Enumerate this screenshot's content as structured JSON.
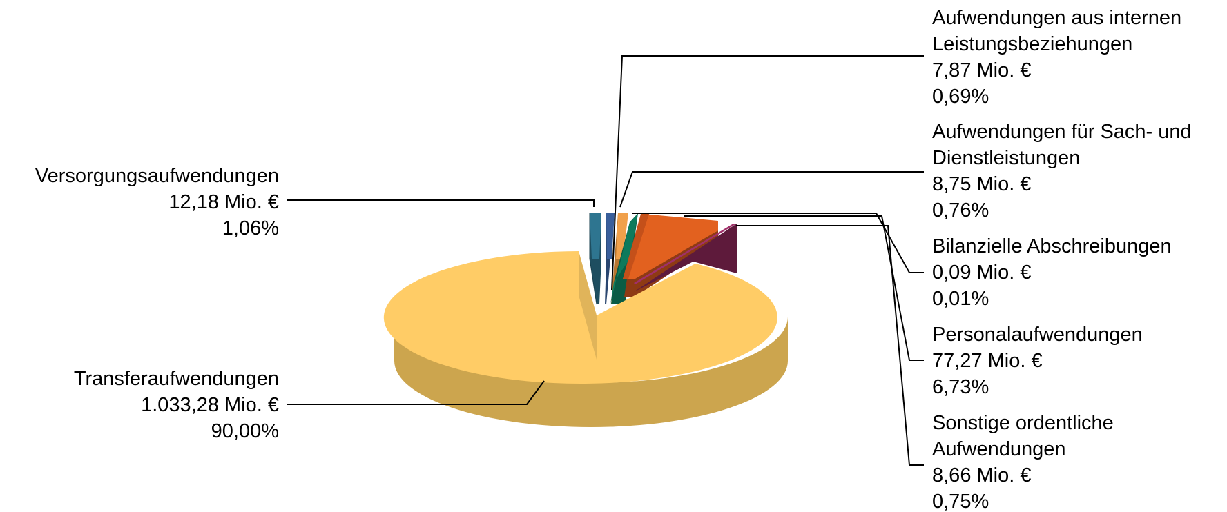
{
  "chart_data": {
    "type": "pie",
    "title": "",
    "unit": "Mio. €",
    "slices": [
      {
        "name": "Transferaufwendungen",
        "value_label": "1.033,28 Mio. €",
        "percent_label": "90,00%",
        "value": 1033.28,
        "percent": 90.0,
        "color": "#FFCC66"
      },
      {
        "name": "Versorgungsaufwendungen",
        "value_label": "12,18 Mio. €",
        "percent_label": "1,06%",
        "value": 12.18,
        "percent": 1.06,
        "color": "#2E7590"
      },
      {
        "name": "Aufwendungen aus internen Leistungsbeziehungen",
        "name_lines": [
          "Aufwendungen aus internen",
          "Leistungsbeziehungen"
        ],
        "value_label": "7,87 Mio. €",
        "percent_label": "0,69%",
        "value": 7.87,
        "percent": 0.69,
        "color": "#3A5F9B"
      },
      {
        "name": "Aufwendungen für Sach- und Dienstleistungen",
        "name_lines": [
          "Aufwendungen für Sach- und",
          "Dienstleistungen"
        ],
        "value_label": "8,75 Mio. €",
        "percent_label": "0,76%",
        "value": 8.75,
        "percent": 0.76,
        "color": "#F0A04B"
      },
      {
        "name": "Bilanzielle Abschreibungen",
        "value_label": "0,09 Mio. €",
        "percent_label": "0,01%",
        "value": 0.09,
        "percent": 0.01,
        "color": "#C0392B"
      },
      {
        "name": "Sonstige ordentliche Aufwendungen",
        "name_lines": [
          "Sonstige ordentliche",
          "Aufwendungen"
        ],
        "value_label": "8,66 Mio. €",
        "percent_label": "0,75%",
        "value": 8.66,
        "percent": 0.75,
        "color": "#0E7A5C"
      },
      {
        "name": "Personalaufwendungen",
        "value_label": "77,27 Mio. €",
        "percent_label": "6,73%",
        "value": 77.27,
        "percent": 6.73,
        "color": "#E2611F"
      },
      {
        "name": "",
        "value": 0,
        "percent": 0,
        "color": "#7A1F4E",
        "unlabeled": true
      }
    ],
    "style": "3d-exploded-pie",
    "legend": "none"
  }
}
